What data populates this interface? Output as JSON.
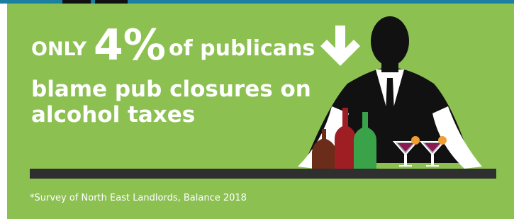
{
  "headline": {
    "lead": "ONLY",
    "figure": "4%",
    "rest": "of publicans"
  },
  "subhead": {
    "lines": [
      "blame pub closures on",
      "alcohol taxes"
    ]
  },
  "footnote": "*Survey of North East Landlords, Balance 2018"
}
